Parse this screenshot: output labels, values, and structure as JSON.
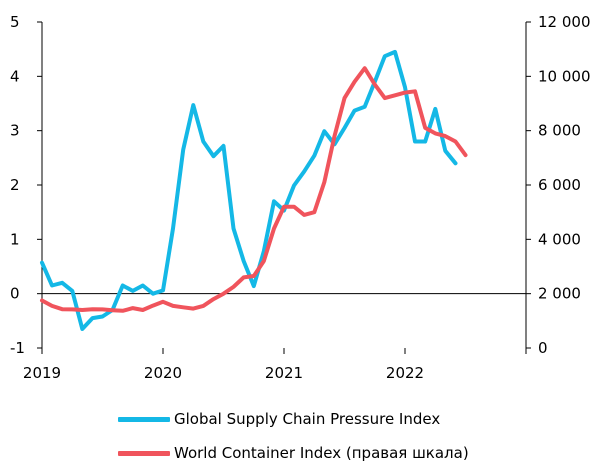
{
  "chart_data": {
    "type": "line",
    "title": "",
    "xlabel": "",
    "ylabel": "",
    "x_ticks": [
      "2019",
      "2020",
      "2021",
      "2022"
    ],
    "y_left_ticks": [
      "5",
      "4",
      "3",
      "2",
      "1",
      "0",
      "-1"
    ],
    "y_right_ticks": [
      "12 000",
      "10 000",
      "8 000",
      "6 000",
      "4 000",
      "2 000",
      "0"
    ],
    "ylim_left": [
      -1,
      5
    ],
    "ylim_right": [
      0,
      12000
    ],
    "xlim": [
      2019,
      2023
    ],
    "grid": false,
    "legend_position": "bottom",
    "series": [
      {
        "name": "Global Supply Chain Pressure Index",
        "axis": "left",
        "color": "#14b8e6",
        "x": [
          2019.0,
          2019.083,
          2019.167,
          2019.25,
          2019.333,
          2019.417,
          2019.5,
          2019.583,
          2019.667,
          2019.75,
          2019.833,
          2019.917,
          2020.0,
          2020.083,
          2020.167,
          2020.25,
          2020.333,
          2020.417,
          2020.5,
          2020.583,
          2020.667,
          2020.75,
          2020.833,
          2020.917,
          2021.0,
          2021.083,
          2021.167,
          2021.25,
          2021.333,
          2021.417,
          2021.5,
          2021.583,
          2021.667,
          2021.75,
          2021.833,
          2021.917,
          2022.0,
          2022.083,
          2022.167,
          2022.25,
          2022.333,
          2022.417,
          2022.5
        ],
        "values": [
          0.57,
          0.15,
          0.2,
          0.05,
          -0.65,
          -0.45,
          -0.42,
          -0.3,
          0.15,
          0.05,
          0.15,
          0.0,
          0.06,
          1.2,
          2.65,
          3.47,
          2.8,
          2.53,
          2.72,
          1.2,
          0.6,
          0.14,
          0.78,
          1.7,
          1.53,
          1.99,
          2.25,
          2.54,
          2.99,
          2.75,
          3.05,
          3.37,
          3.44,
          3.9,
          4.37,
          4.45,
          3.8,
          2.8,
          2.8,
          3.4,
          2.63,
          2.4,
          null
        ]
      },
      {
        "name": "World Container Index (правая шкала)",
        "axis": "right",
        "color": "#f0545c",
        "x": [
          2019.0,
          2019.083,
          2019.167,
          2019.25,
          2019.333,
          2019.417,
          2019.5,
          2019.583,
          2019.667,
          2019.75,
          2019.833,
          2019.917,
          2020.0,
          2020.083,
          2020.167,
          2020.25,
          2020.333,
          2020.417,
          2020.5,
          2020.583,
          2020.667,
          2020.75,
          2020.833,
          2020.917,
          2021.0,
          2021.083,
          2021.167,
          2021.25,
          2021.333,
          2021.417,
          2021.5,
          2021.583,
          2021.667,
          2021.75,
          2021.833,
          2021.917,
          2022.0,
          2022.083,
          2022.167,
          2022.25,
          2022.333,
          2022.417,
          2022.5,
          2022.583
        ],
        "values": [
          1750,
          1550,
          1430,
          1420,
          1400,
          1430,
          1420,
          1390,
          1370,
          1470,
          1400,
          1560,
          1700,
          1550,
          1500,
          1450,
          1550,
          1800,
          2000,
          2250,
          2600,
          2650,
          3200,
          4400,
          5200,
          5200,
          4900,
          5000,
          6100,
          7800,
          9200,
          9800,
          10300,
          9700,
          9200,
          9300,
          9400,
          9450,
          8100,
          7900,
          7800,
          7600,
          7100,
          null
        ]
      }
    ]
  }
}
